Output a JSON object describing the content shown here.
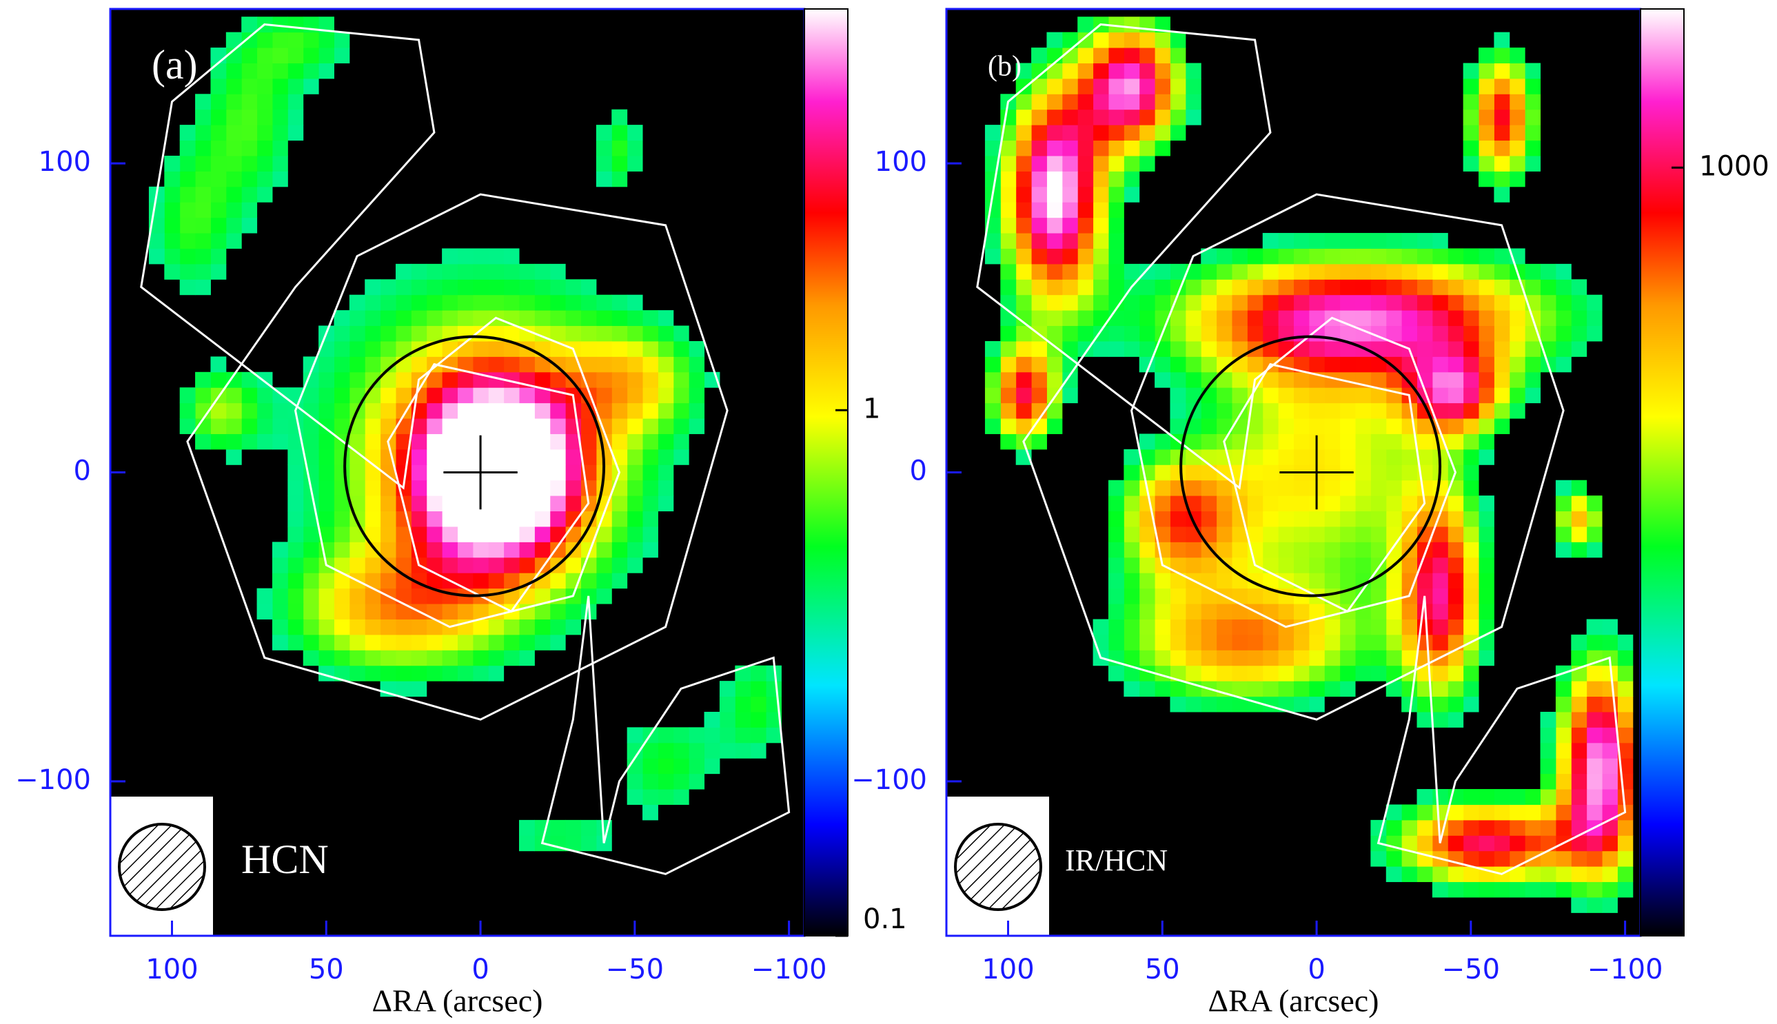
{
  "chart_data": [
    {
      "type": "image",
      "panel_label": "(a)",
      "annotation": "HCN",
      "xlabel": "ΔRA (arcsec)",
      "xlim": [
        120,
        -105
      ],
      "xticks": [
        100,
        50,
        0,
        {
          "value": -50,
          "label": "−50"
        },
        {
          "value": -100,
          "label": "−100"
        }
      ],
      "ylim": [
        -150,
        150
      ],
      "yticks": [
        {
          "value": -100,
          "label": "−100"
        },
        0,
        100
      ],
      "colorbar": {
        "scale": "log",
        "lim": [
          0.1,
          5.8
        ],
        "ticks": [
          0.1,
          1
        ]
      }
    },
    {
      "type": "image",
      "panel_label": "(b)",
      "annotation": "IR/HCN",
      "xlabel": "ΔRA (arcsec)",
      "xlim": [
        120,
        -105
      ],
      "xticks": [
        100,
        50,
        0,
        {
          "value": -50,
          "label": "−50"
        },
        {
          "value": -100,
          "label": "−100"
        }
      ],
      "ylim": [
        -150,
        150
      ],
      "yticks": [
        {
          "value": -100,
          "label": "−100"
        },
        0,
        100
      ],
      "colorbar": {
        "scale": "log",
        "lim": [
          22,
          2200
        ],
        "ticks": [
          1000
        ]
      }
    }
  ]
}
